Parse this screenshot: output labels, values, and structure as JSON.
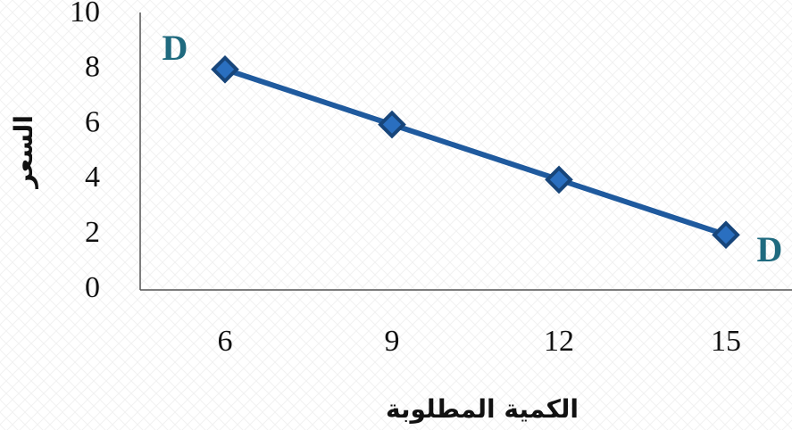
{
  "chart_data": {
    "type": "line",
    "x_label": "الكمية المطلوبة",
    "y_label": "السعر",
    "categories": [
      "6",
      "9",
      "12",
      "15"
    ],
    "series": [
      {
        "color": "#1f5a9e",
        "values": [
          8,
          6,
          4,
          2
        ]
      }
    ],
    "ylim": [
      0,
      10
    ],
    "yticks": [
      0,
      2,
      4,
      6,
      8,
      10
    ],
    "grid": false,
    "annotations": [
      "D",
      "D"
    ]
  }
}
